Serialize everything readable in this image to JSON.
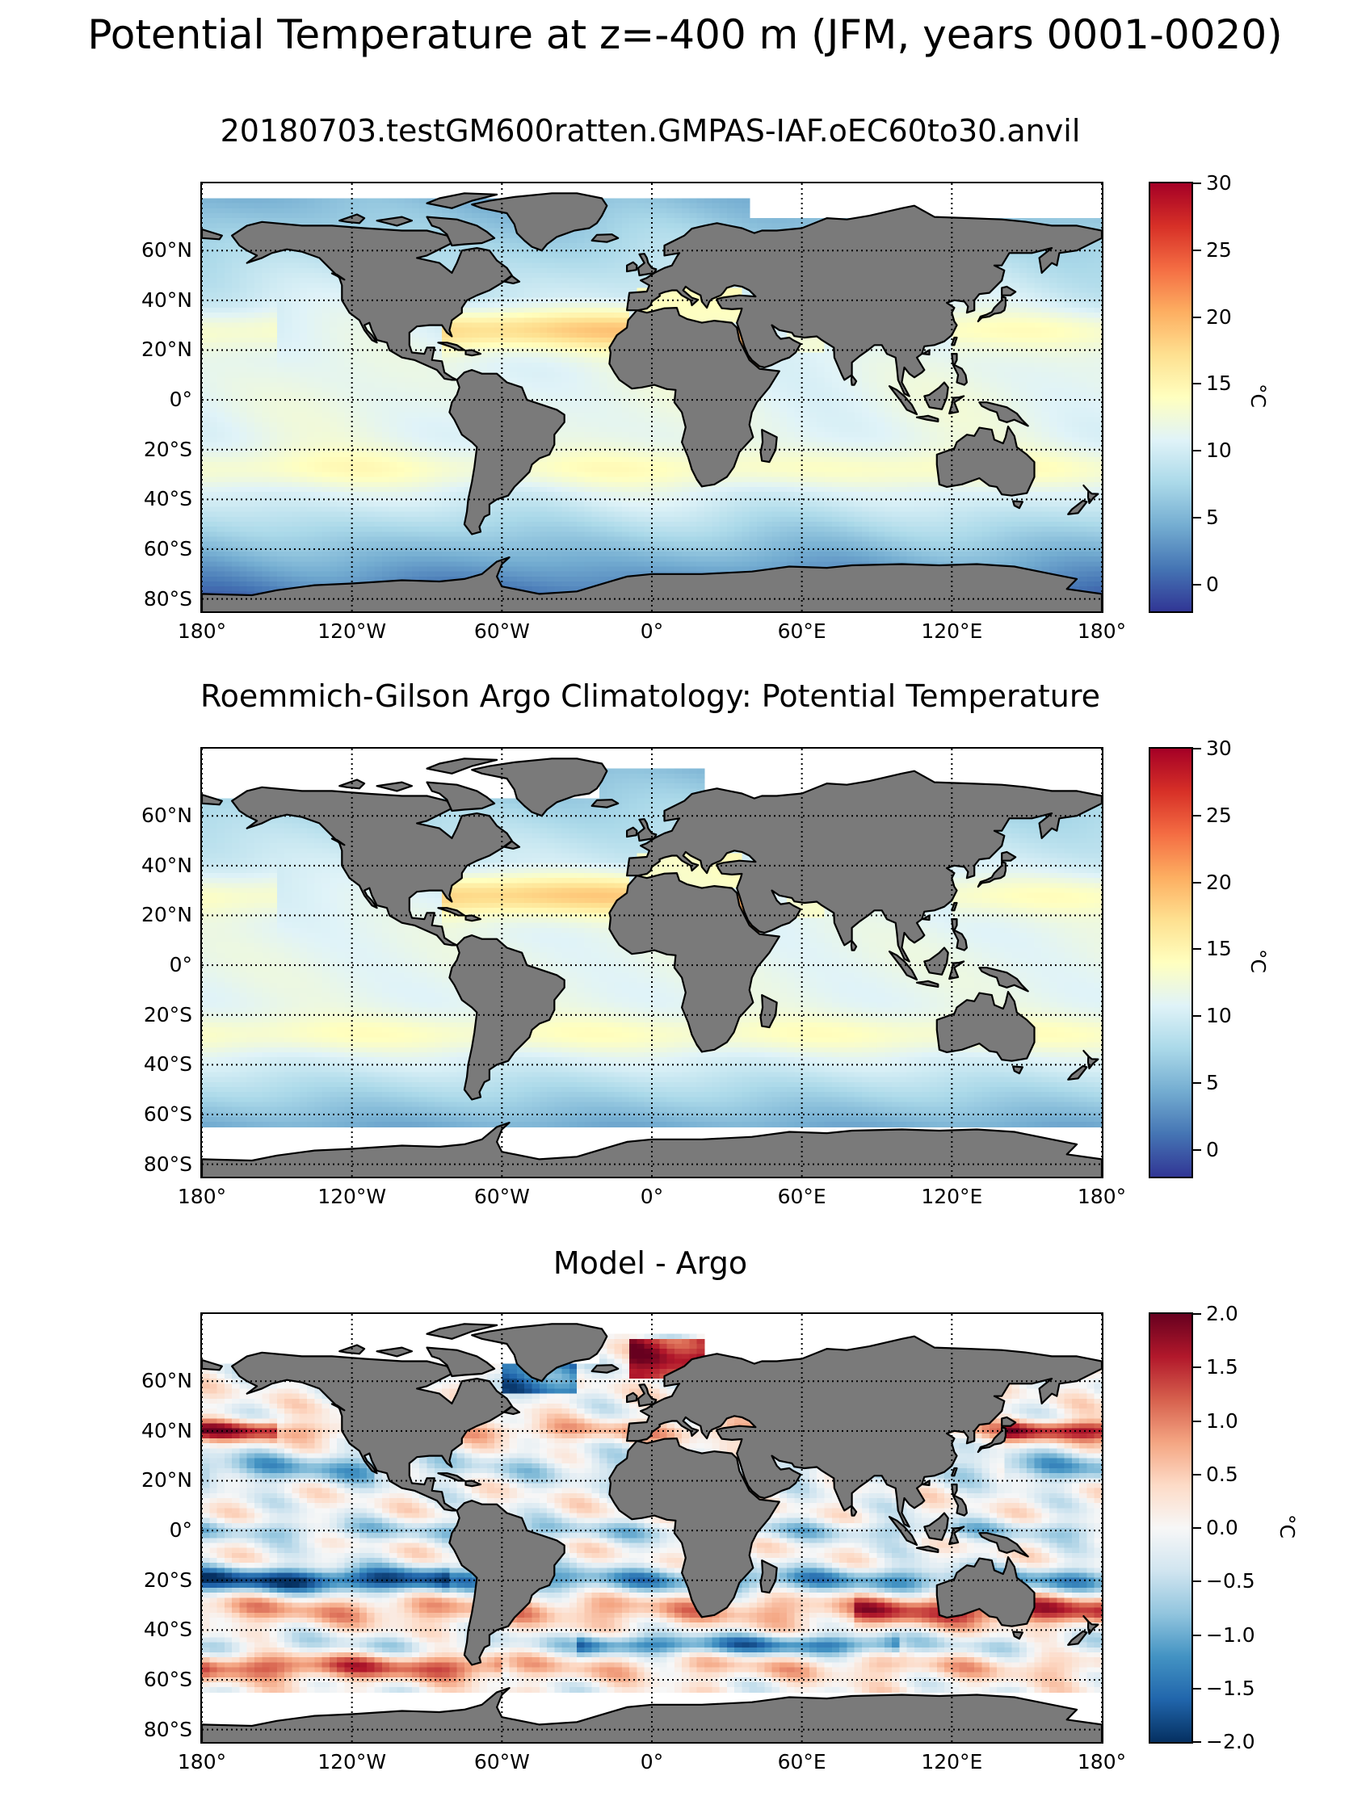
{
  "figure": {
    "suptitle": "Potential Temperature at z=-400 m (JFM, years 0001-0020)"
  },
  "lat_labels": [
    "60°N",
    "40°N",
    "20°N",
    "0°",
    "20°S",
    "40°S",
    "60°S",
    "80°S"
  ],
  "lon_labels": [
    "180°",
    "120°W",
    "60°W",
    "0°",
    "60°E",
    "120°E",
    "180°"
  ],
  "panels": [
    {
      "title": "20180703.testGM600ratten.GMPAS-IAF.oEC60to30.anvil",
      "colormap": "RdYlBu_r",
      "colorbar": {
        "min": -2,
        "max": 30,
        "ticks": [
          "30",
          "25",
          "20",
          "15",
          "10",
          "5",
          "0"
        ],
        "unit": "°C"
      }
    },
    {
      "title": "Roemmich-Gilson Argo Climatology: Potential Temperature",
      "colormap": "RdYlBu_r",
      "colorbar": {
        "min": -2,
        "max": 30,
        "ticks": [
          "30",
          "25",
          "20",
          "15",
          "10",
          "5",
          "0"
        ],
        "unit": "°C"
      }
    },
    {
      "title": "Model - Argo",
      "colormap": "RdBu_r",
      "colorbar": {
        "min": -2.0,
        "max": 2.0,
        "ticks": [
          "2.0",
          "1.5",
          "1.0",
          "0.5",
          "0.0",
          "−0.5",
          "−1.0",
          "−1.5",
          "−2.0"
        ],
        "unit": "°C"
      }
    }
  ],
  "colors": {
    "land": "#7a7a7a",
    "coast": "#000000",
    "missing": "#ffffff"
  }
}
